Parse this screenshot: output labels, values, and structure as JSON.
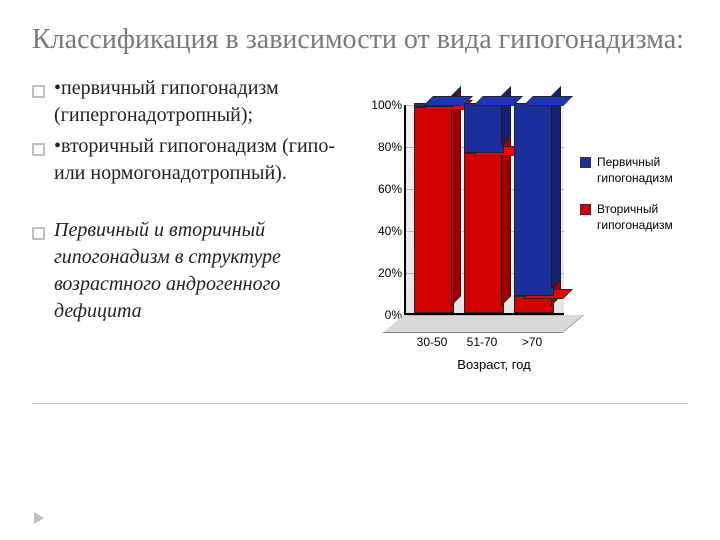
{
  "title": "Классификация в зависимости от вида гипогонадизма:",
  "bullets": {
    "b1": "•первичный гипогонадизм (гипергонадотропный);",
    "b2": "•вторичный гипогонадизм (гипо- или нормогонадотропный).",
    "b3": "Первичный и вторичный гипогонадизм в структуре возрастного андрогенного дефицита"
  },
  "chart": {
    "type": "stacked-bar-3d",
    "categories": [
      "30-50",
      "51-70",
      ">70"
    ],
    "series": [
      {
        "name": "Вторичный гипогонадизм",
        "color": "#d40000",
        "values": [
          98,
          76,
          8
        ]
      },
      {
        "name": "Первичный гипогонадизм",
        "color": "#1a2e9e",
        "values": [
          2,
          24,
          92
        ]
      }
    ],
    "ylim": [
      0,
      100
    ],
    "ytick_step": 20,
    "ytick_suffix": "%",
    "xaxis_title": "Возраст, год",
    "background_color": "#eeeeee",
    "grid_color": "#bbbbbb",
    "title_fontsize": 12,
    "label_fontsize": 12
  },
  "legend": {
    "items": [
      {
        "swatch": "#1a2e9e",
        "label": "Первичный гипогонадизм"
      },
      {
        "swatch": "#d40000",
        "label": "Вторичный гипогонадизм"
      }
    ]
  }
}
